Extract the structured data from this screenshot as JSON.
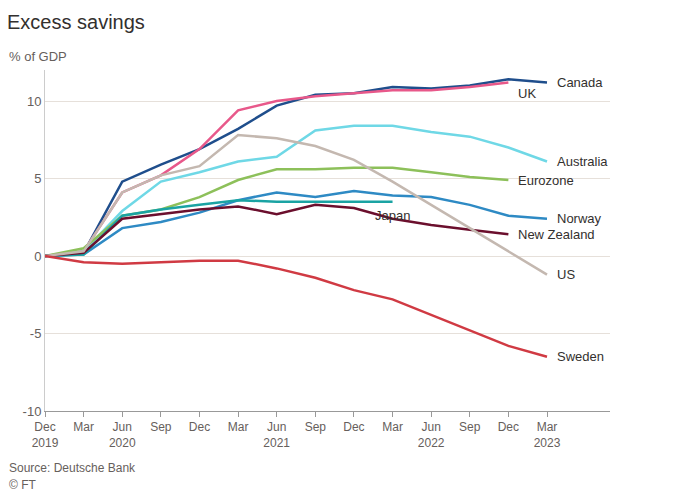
{
  "chart_data": {
    "type": "line",
    "title": "Excess savings",
    "ylabel": "% of GDP",
    "annotations": [
      "Source: Deutsche Bank",
      "© FT"
    ],
    "categories": [
      "Dec\n2019",
      "Mar",
      "Jun\n2020",
      "Sep",
      "Dec",
      "Mar",
      "Jun\n2021",
      "Sep",
      "Dec",
      "Mar",
      "Jun\n2022",
      "Sep",
      "Dec",
      "Mar\n2023"
    ],
    "ylim": [
      -10,
      12
    ],
    "yticks": [
      -10,
      -5,
      0,
      5,
      10
    ],
    "grid": true,
    "series": [
      {
        "name": "Canada",
        "color": "#1f4e8c",
        "values": [
          0,
          0.2,
          4.8,
          5.9,
          6.9,
          8.2,
          9.7,
          10.4,
          10.5,
          10.9,
          10.8,
          11.0,
          11.4,
          11.2
        ]
      },
      {
        "name": "UK",
        "color": "#e8588a",
        "values": [
          0,
          0.3,
          4.1,
          5.2,
          6.9,
          9.4,
          10.0,
          10.3,
          10.5,
          10.7,
          10.7,
          10.9,
          11.2,
          null
        ]
      },
      {
        "name": "Australia",
        "color": "#6fd8e6",
        "values": [
          0,
          0.3,
          2.9,
          4.8,
          5.4,
          6.1,
          6.4,
          8.1,
          8.4,
          8.4,
          8.0,
          7.7,
          7.0,
          6.1
        ]
      },
      {
        "name": "Eurozone",
        "color": "#8dc05a",
        "values": [
          0,
          0.5,
          2.6,
          3.0,
          3.8,
          4.9,
          5.6,
          5.6,
          5.7,
          5.7,
          5.4,
          5.1,
          4.9,
          null
        ]
      },
      {
        "name": "Norway",
        "color": "#2e8ac4",
        "values": [
          0,
          0.1,
          1.8,
          2.2,
          2.8,
          3.6,
          4.1,
          3.8,
          4.2,
          3.9,
          3.8,
          3.3,
          2.6,
          2.4
        ]
      },
      {
        "name": "Japan",
        "color": "#1aa3a3",
        "values": [
          0,
          0.1,
          2.6,
          3.0,
          3.3,
          3.6,
          3.5,
          3.5,
          3.5,
          3.5,
          null,
          null,
          null,
          null
        ]
      },
      {
        "name": "New Zealand",
        "color": "#6b0f2d",
        "values": [
          0,
          0.2,
          2.4,
          2.7,
          3.0,
          3.2,
          2.7,
          3.3,
          3.1,
          2.4,
          2.0,
          1.7,
          1.4,
          null
        ]
      },
      {
        "name": "US",
        "color": "#c4b8b0",
        "values": [
          0,
          0.3,
          4.1,
          5.2,
          5.8,
          7.8,
          7.6,
          7.1,
          6.2,
          4.8,
          3.3,
          1.8,
          0.3,
          -1.2
        ]
      },
      {
        "name": "Sweden",
        "color": "#d03a43",
        "values": [
          0,
          -0.4,
          -0.5,
          -0.4,
          -0.3,
          -0.3,
          -0.8,
          -1.4,
          -2.2,
          -2.8,
          -3.8,
          -4.8,
          -5.8,
          -6.5
        ]
      }
    ]
  }
}
